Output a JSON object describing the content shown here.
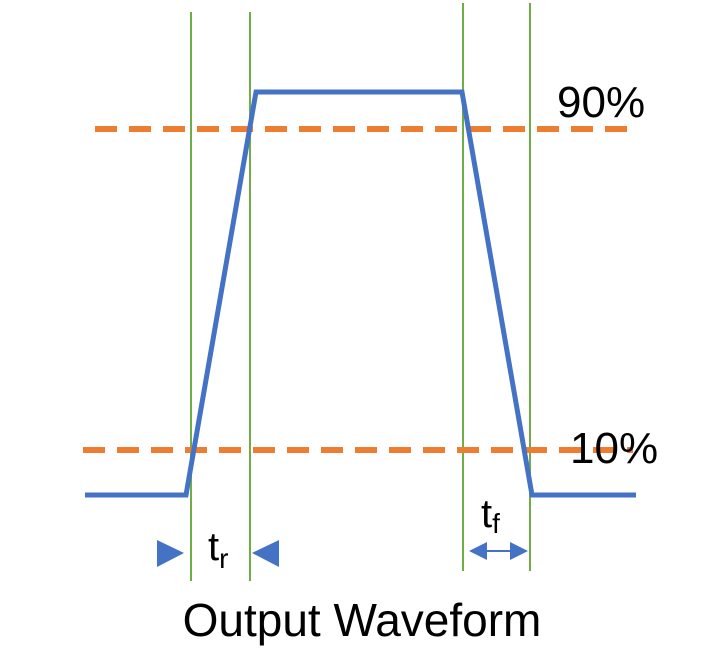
{
  "title": "Output Waveform",
  "levels": {
    "high": "90%",
    "low": "10%"
  },
  "rise_label": {
    "main": "t",
    "sub": "r"
  },
  "fall_label": {
    "main": "t",
    "sub": "f"
  },
  "colors": {
    "waveform": "#4472C4",
    "threshold": "#ED7D31",
    "marker": "#70AD47",
    "text": "#000000"
  }
}
